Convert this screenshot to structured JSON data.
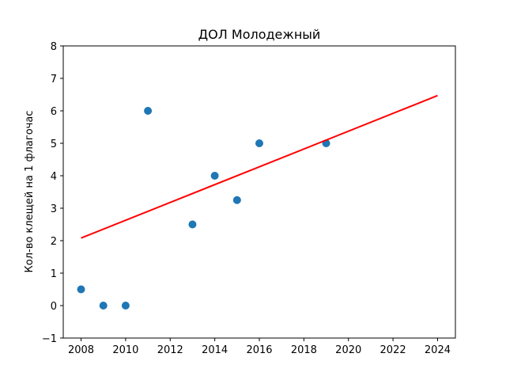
{
  "chart_data": {
    "type": "scatter",
    "title": "ДОЛ Молодежный",
    "xlabel": "",
    "ylabel": "Кол-во клещей на 1 флагочас",
    "xlim": [
      2007.2,
      2024.8
    ],
    "ylim": [
      -1,
      8
    ],
    "xticks": [
      2008,
      2010,
      2012,
      2014,
      2016,
      2018,
      2020,
      2022,
      2024
    ],
    "yticks": [
      -1,
      0,
      1,
      2,
      3,
      4,
      5,
      6,
      7,
      8
    ],
    "grid": false,
    "points": {
      "x": [
        2008,
        2009,
        2010,
        2011,
        2013,
        2014,
        2015,
        2016,
        2019
      ],
      "y": [
        0.5,
        0.0,
        0.0,
        6.0,
        2.5,
        4.0,
        3.25,
        5.0,
        5.0
      ]
    },
    "trendline": {
      "x": [
        2008,
        2024
      ],
      "y": [
        2.08,
        6.47
      ]
    },
    "colors": {
      "points": "#1f77b4",
      "trendline": "#ff0000"
    }
  }
}
